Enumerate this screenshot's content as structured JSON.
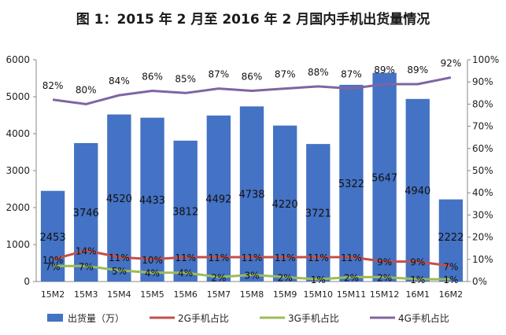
{
  "chart_data": {
    "type": "bar",
    "title": "图 1：2015 年 2 月至 2016 年 2 月国内手机出货量情况",
    "categories": [
      "15M2",
      "15M3",
      "15M4",
      "15M5",
      "15M6",
      "15M7",
      "15M8",
      "15M9",
      "15M10",
      "15M11",
      "15M12",
      "16M1",
      "16M2"
    ],
    "y_left_ticks": [
      "0",
      "1000",
      "2000",
      "3000",
      "4000",
      "5000",
      "6000"
    ],
    "y_right_ticks": [
      "0%",
      "10%",
      "20%",
      "30%",
      "40%",
      "50%",
      "60%",
      "70%",
      "80%",
      "90%",
      "100%"
    ],
    "ylim_left": [
      0,
      6000
    ],
    "ylim_right": [
      0,
      100
    ],
    "bar_series": {
      "name": "出货量（万）",
      "color": "#4472C4",
      "values": [
        2453,
        3746,
        4520,
        4433,
        3812,
        4492,
        4738,
        4220,
        3721,
        5322,
        5647,
        4940,
        2222
      ]
    },
    "line_series": [
      {
        "name": "2G手机占比",
        "color": "#C0504D",
        "values": [
          10,
          14,
          11,
          10,
          11,
          11,
          11,
          11,
          11,
          11,
          9,
          9,
          7
        ],
        "labels": [
          "10%",
          "14%",
          "11%",
          "10%",
          "11%",
          "11%",
          "11%",
          "11%",
          "11%",
          "11%",
          "9%",
          "9%",
          "7%"
        ]
      },
      {
        "name": "3G手机占比",
        "color": "#9BBB59",
        "values": [
          7,
          7,
          5,
          4,
          4,
          2,
          3,
          2,
          1,
          2,
          2,
          1,
          1
        ],
        "labels": [
          "7%",
          "7%",
          "5%",
          "4%",
          "4%",
          "2%",
          "3%",
          "2%",
          "1%",
          "2%",
          "2%",
          "1%",
          "1%"
        ]
      },
      {
        "name": "4G手机占比",
        "color": "#8064A2",
        "values": [
          82,
          80,
          84,
          86,
          85,
          87,
          86,
          87,
          88,
          87,
          89,
          89,
          92
        ],
        "labels": [
          "82%",
          "80%",
          "84%",
          "86%",
          "85%",
          "87%",
          "86%",
          "87%",
          "88%",
          "87%",
          "89%",
          "89%",
          "92%"
        ]
      }
    ],
    "legend_position": "bottom",
    "grid": false
  }
}
